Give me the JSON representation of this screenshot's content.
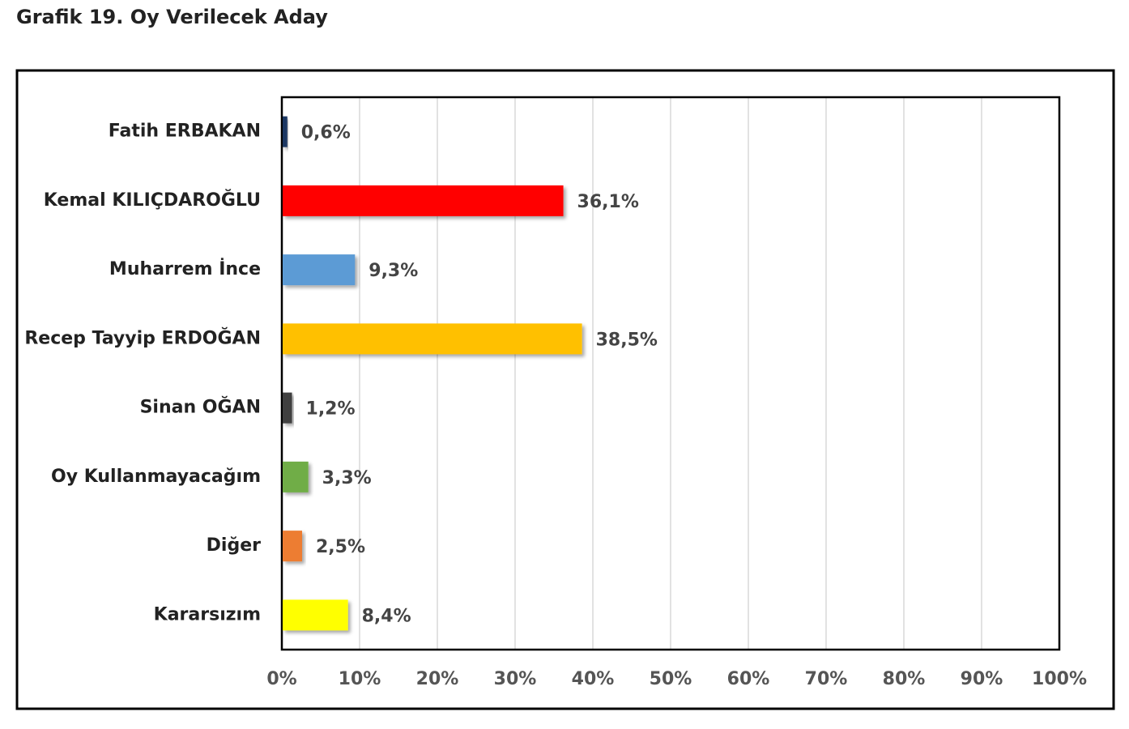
{
  "chart_data": {
    "type": "bar",
    "orientation": "horizontal",
    "title": "Grafik 19. Oy Verilecek Aday",
    "categories": [
      "Fatih ERBAKAN",
      "Kemal KILIÇDAROĞLU",
      "Muharrem İnce",
      "Recep Tayyip ERDOĞAN",
      "Sinan OĞAN",
      "Oy Kullanmayacağım",
      "Diğer",
      "Kararsızım"
    ],
    "values": [
      0.6,
      36.1,
      9.3,
      38.5,
      1.2,
      3.3,
      2.5,
      8.4
    ],
    "value_labels": [
      "0,6%",
      "36,1%",
      "9,3%",
      "38,5%",
      "1,2%",
      "3,3%",
      "2,5%",
      "8,4%"
    ],
    "colors": [
      "#1f3864",
      "#ff0000",
      "#5b9bd5",
      "#ffc000",
      "#404040",
      "#70ad47",
      "#ed7d31",
      "#ffff00"
    ],
    "xlim": [
      0,
      100
    ],
    "xticks": [
      {
        "value": 0,
        "label": "0%"
      },
      {
        "value": 10,
        "label": "10%"
      },
      {
        "value": 20,
        "label": "20%"
      },
      {
        "value": 30,
        "label": "30%"
      },
      {
        "value": 40,
        "label": "40%"
      },
      {
        "value": 50,
        "label": "50%"
      },
      {
        "value": 60,
        "label": "60%"
      },
      {
        "value": 70,
        "label": "70%"
      },
      {
        "value": 80,
        "label": "80%"
      },
      {
        "value": 90,
        "label": "90%"
      },
      {
        "value": 100,
        "label": "100%"
      }
    ],
    "grid": true
  }
}
